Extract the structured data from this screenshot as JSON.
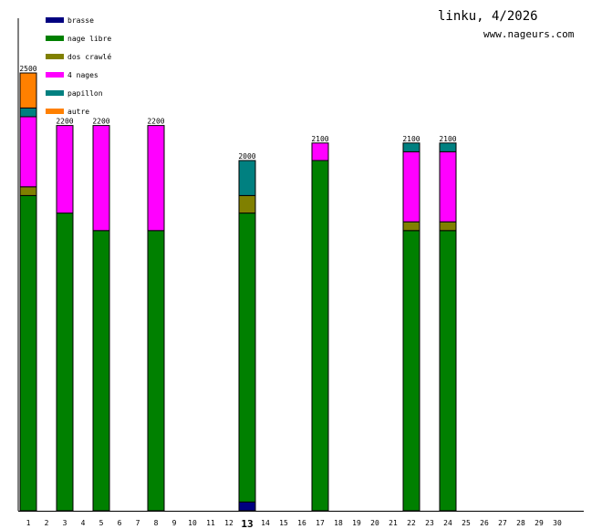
{
  "header": {
    "title": "linku, 4/2026",
    "site": "www.nageurs.com"
  },
  "chart_data": {
    "type": "bar",
    "stacked": true,
    "categories": [
      "1",
      "2",
      "3",
      "4",
      "5",
      "6",
      "7",
      "8",
      "9",
      "10",
      "11",
      "12",
      "13",
      "14",
      "15",
      "16",
      "17",
      "18",
      "19",
      "20",
      "21",
      "22",
      "23",
      "24",
      "25",
      "26",
      "27",
      "28",
      "29",
      "30"
    ],
    "highlight_category": "13",
    "ylim": [
      0,
      2800
    ],
    "legend_position": "top-left",
    "grid": false,
    "series": [
      {
        "name": "brasse",
        "color": "#000080",
        "values": [
          0,
          0,
          0,
          0,
          0,
          0,
          0,
          0,
          0,
          0,
          0,
          0,
          50,
          0,
          0,
          0,
          0,
          0,
          0,
          0,
          0,
          0,
          0,
          0,
          0,
          0,
          0,
          0,
          0,
          0
        ]
      },
      {
        "name": "nage libre",
        "color": "#008000",
        "values": [
          1800,
          0,
          1700,
          0,
          1600,
          0,
          0,
          1600,
          0,
          0,
          0,
          0,
          1650,
          0,
          0,
          0,
          2000,
          0,
          0,
          0,
          0,
          1600,
          0,
          1600,
          0,
          0,
          0,
          0,
          0,
          0
        ]
      },
      {
        "name": "dos crawlé",
        "color": "#808000",
        "values": [
          50,
          0,
          0,
          0,
          0,
          0,
          0,
          0,
          0,
          0,
          0,
          0,
          100,
          0,
          0,
          0,
          0,
          0,
          0,
          0,
          0,
          50,
          0,
          50,
          0,
          0,
          0,
          0,
          0,
          0
        ]
      },
      {
        "name": "4 nages",
        "color": "#ff00ff",
        "values": [
          400,
          0,
          500,
          0,
          600,
          0,
          0,
          600,
          0,
          0,
          0,
          0,
          0,
          0,
          0,
          0,
          100,
          0,
          0,
          0,
          0,
          400,
          0,
          400,
          0,
          0,
          0,
          0,
          0,
          0
        ]
      },
      {
        "name": "papillon",
        "color": "#008080",
        "values": [
          50,
          0,
          0,
          0,
          0,
          0,
          0,
          0,
          0,
          0,
          0,
          0,
          200,
          0,
          0,
          0,
          0,
          0,
          0,
          0,
          0,
          50,
          0,
          50,
          0,
          0,
          0,
          0,
          0,
          0
        ]
      },
      {
        "name": "autre",
        "color": "#ff8000",
        "values": [
          200,
          0,
          0,
          0,
          0,
          0,
          0,
          0,
          0,
          0,
          0,
          0,
          0,
          0,
          0,
          0,
          0,
          0,
          0,
          0,
          0,
          0,
          0,
          0,
          0,
          0,
          0,
          0,
          0,
          0
        ]
      }
    ],
    "totals": [
      2500,
      0,
      2200,
      0,
      2200,
      0,
      0,
      2200,
      0,
      0,
      0,
      0,
      2000,
      0,
      0,
      0,
      2100,
      0,
      0,
      0,
      0,
      2100,
      0,
      2100,
      0,
      0,
      0,
      0,
      0,
      0
    ]
  }
}
